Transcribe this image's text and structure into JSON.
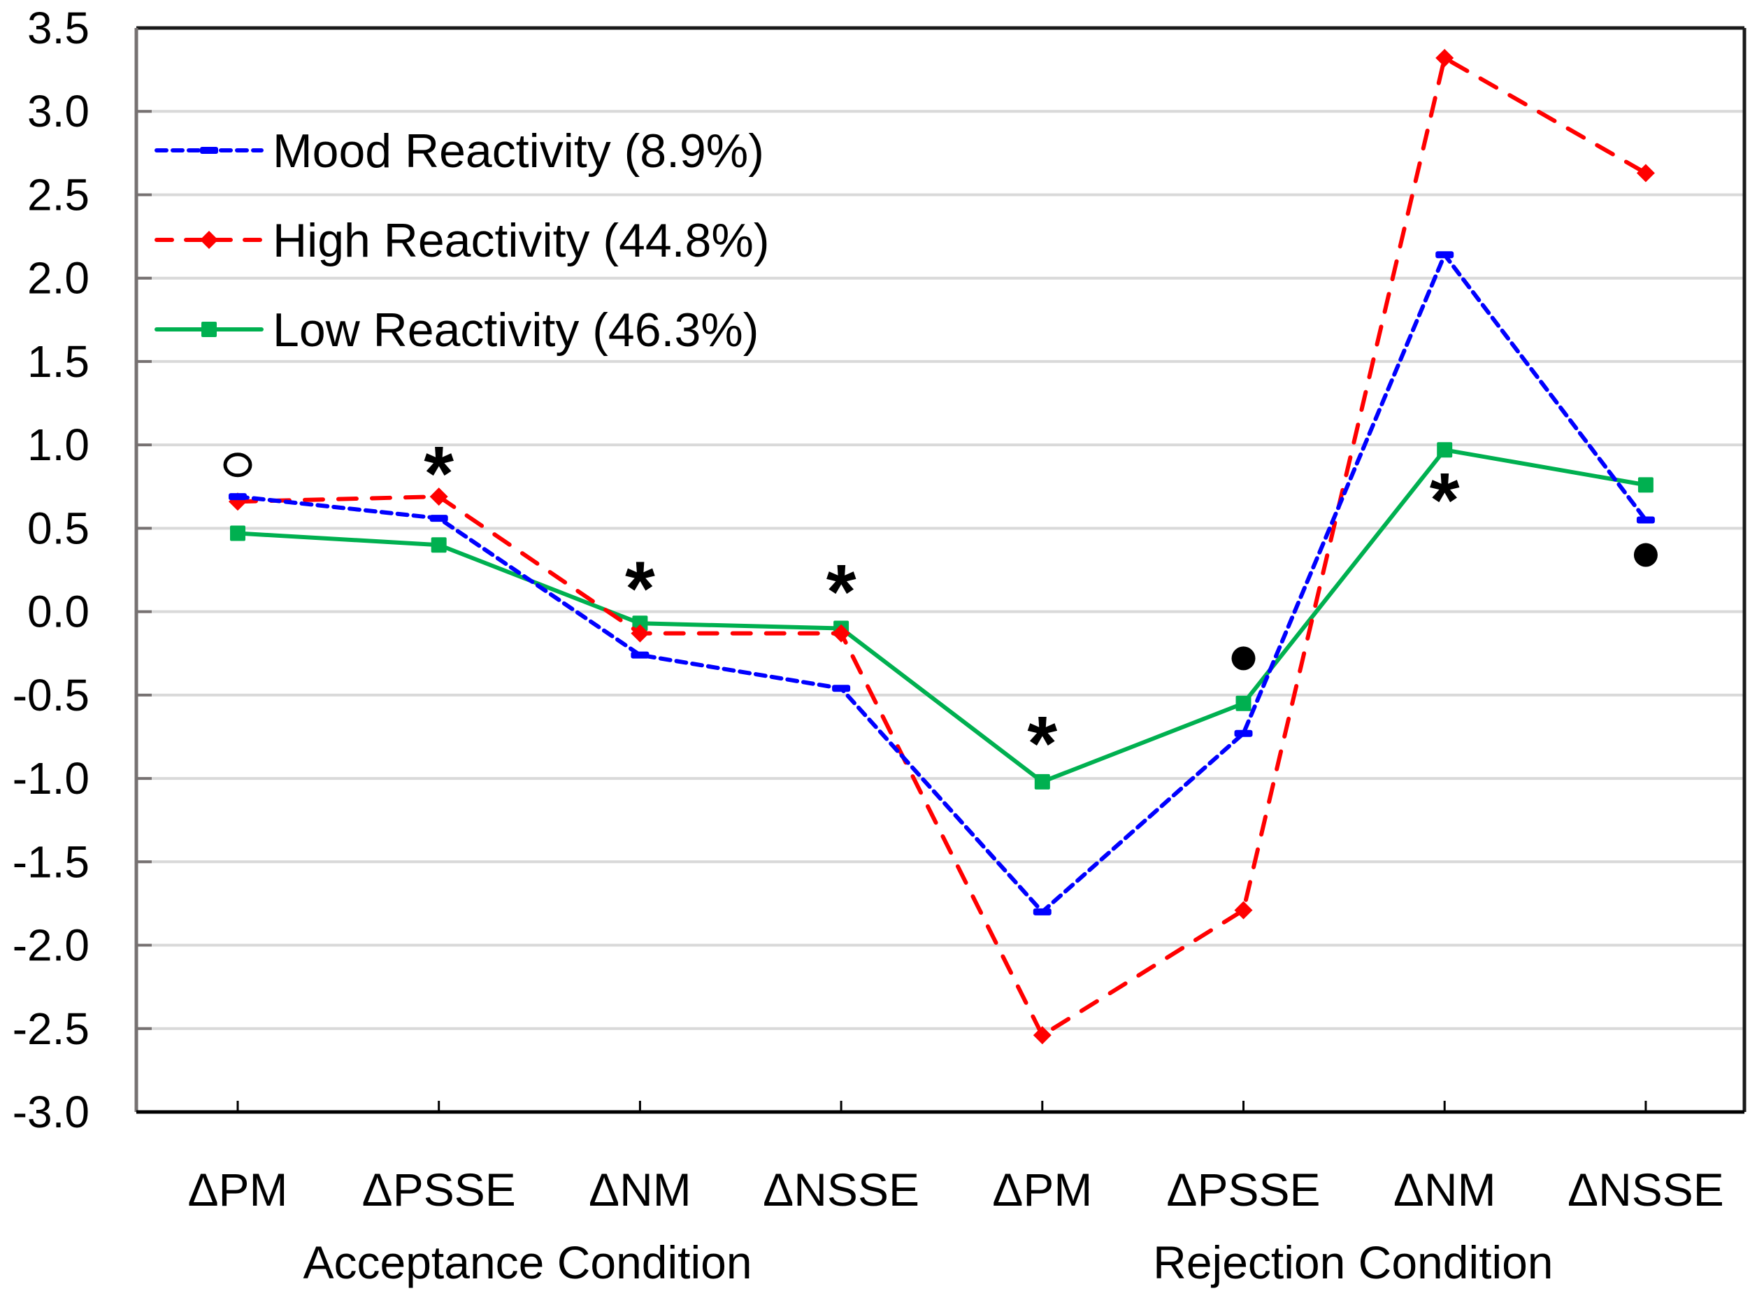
{
  "chart_data": {
    "type": "line",
    "title": "",
    "xlabel": "",
    "ylabel": "",
    "ylim": [
      -3.0,
      3.5
    ],
    "yticks": [
      "3.5",
      "3.0",
      "2.5",
      "2.0",
      "1.5",
      "1.0",
      "0.5",
      "0.0",
      "-0.5",
      "-1.0",
      "-1.5",
      "-2.0",
      "-2.5",
      "-3.0"
    ],
    "grid": true,
    "legend_position": "upper-left",
    "categories": [
      "ΔPM",
      "ΔPSSE",
      "ΔNM",
      "ΔNSSE",
      "ΔPM",
      "ΔPSSE",
      "ΔNM",
      "ΔNSSE"
    ],
    "groups": [
      {
        "label": "Acceptance Condition",
        "categories": [
          "ΔPM",
          "ΔPSSE",
          "ΔNM",
          "ΔNSSE"
        ]
      },
      {
        "label": "Rejection Condition",
        "categories": [
          "ΔPM",
          "ΔPSSE",
          "ΔNM",
          "ΔNSSE"
        ]
      }
    ],
    "series": [
      {
        "name": "Mood Reactivity (8.9%)",
        "color": "#0000FF",
        "style": "dotted",
        "marker": "dash",
        "values": [
          0.69,
          0.56,
          -0.26,
          -0.46,
          -1.8,
          -0.73,
          2.14,
          0.55
        ]
      },
      {
        "name": "High Reactivity (44.8%)",
        "color": "#FF0000",
        "style": "dashed",
        "marker": "diamond",
        "values": [
          0.66,
          0.69,
          -0.13,
          -0.13,
          -2.54,
          -1.79,
          3.32,
          2.63
        ]
      },
      {
        "name": "Low Reactivity (46.3%)",
        "color": "#00B050",
        "style": "solid",
        "marker": "square",
        "values": [
          0.47,
          0.4,
          -0.07,
          -0.1,
          -1.02,
          -0.55,
          0.97,
          0.76
        ]
      }
    ],
    "annotations": [
      {
        "category_index": 0,
        "symbol": "open-circle",
        "y": 0.88
      },
      {
        "category_index": 1,
        "symbol": "asterisk",
        "y": 0.88
      },
      {
        "category_index": 2,
        "symbol": "asterisk",
        "y": 0.19
      },
      {
        "category_index": 3,
        "symbol": "asterisk",
        "y": 0.17
      },
      {
        "category_index": 4,
        "symbol": "asterisk",
        "y": -0.74
      },
      {
        "category_index": 5,
        "symbol": "filled-circle",
        "y": -0.28
      },
      {
        "category_index": 6,
        "symbol": "asterisk",
        "y": 0.72
      },
      {
        "category_index": 7,
        "symbol": "filled-circle",
        "y": 0.34
      }
    ]
  }
}
